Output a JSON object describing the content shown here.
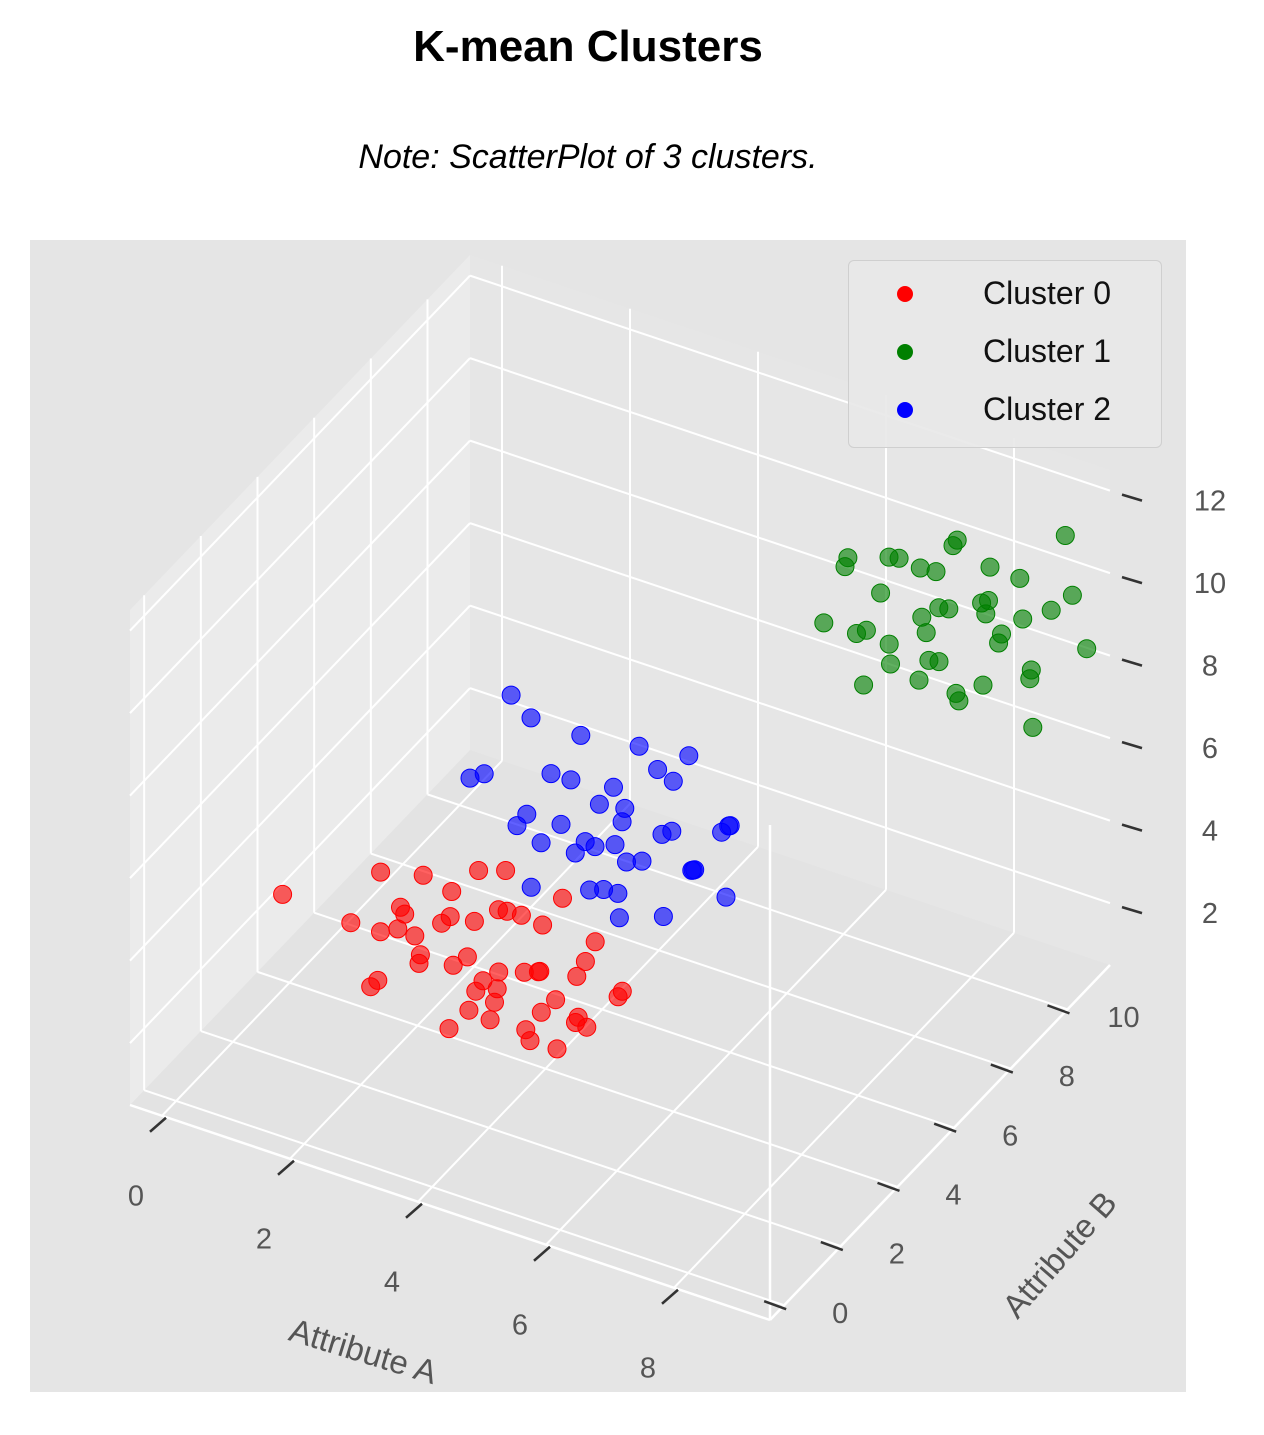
{
  "title": "K-mean Clusters",
  "subtitle": "Note: ScatterPlot of 3 clusters.",
  "chart_data": {
    "type": "scatter",
    "projection": "3d",
    "xlabel": "Attribute A",
    "ylabel": "Attribute B",
    "zlabel": "",
    "xlim": [
      -0.5,
      9.5
    ],
    "ylim": [
      -0.5,
      11.5
    ],
    "zlim": [
      0.5,
      12.5
    ],
    "xticks": [
      "0",
      "2",
      "4",
      "6",
      "8"
    ],
    "yticks": [
      "0",
      "2",
      "4",
      "6",
      "8",
      "10"
    ],
    "zticks": [
      "2",
      "4",
      "6",
      "8",
      "10",
      "12"
    ],
    "grid": true,
    "legend_position": "top-right",
    "series": [
      {
        "name": "Cluster 0",
        "color": "#ff0000",
        "points": [
          [
            1.2,
            4.5,
            2.0
          ],
          [
            0.6,
            2.4,
            4.1
          ],
          [
            1.4,
            3.0,
            3.4
          ],
          [
            2.0,
            3.4,
            3.8
          ],
          [
            1.8,
            4.0,
            3.1
          ],
          [
            2.4,
            3.2,
            3.0
          ],
          [
            2.6,
            3.8,
            3.6
          ],
          [
            2.2,
            4.4,
            2.8
          ],
          [
            1.6,
            3.6,
            4.3
          ],
          [
            3.0,
            3.0,
            3.2
          ],
          [
            3.2,
            3.6,
            2.5
          ],
          [
            2.8,
            4.2,
            3.3
          ],
          [
            3.4,
            2.6,
            3.9
          ],
          [
            2.0,
            2.6,
            2.6
          ],
          [
            3.6,
            3.2,
            2.8
          ],
          [
            3.0,
            4.6,
            3.4
          ],
          [
            4.0,
            3.8,
            3.0
          ],
          [
            3.8,
            2.8,
            3.6
          ],
          [
            4.2,
            3.4,
            2.4
          ],
          [
            3.4,
            4.0,
            4.0
          ],
          [
            2.4,
            2.4,
            4.2
          ],
          [
            4.6,
            3.0,
            3.2
          ],
          [
            4.4,
            4.2,
            2.8
          ],
          [
            4.8,
            3.6,
            3.8
          ],
          [
            4.0,
            2.2,
            3.4
          ],
          [
            3.2,
            2.4,
            2.2
          ],
          [
            5.0,
            3.2,
            2.6
          ],
          [
            4.6,
            4.4,
            3.6
          ],
          [
            2.8,
            3.4,
            4.6
          ],
          [
            1.8,
            2.8,
            2.2
          ],
          [
            3.6,
            4.8,
            3.2
          ],
          [
            5.2,
            4.0,
            3.0
          ],
          [
            4.2,
            3.0,
            2.0
          ],
          [
            3.8,
            3.6,
            4.4
          ],
          [
            2.6,
            4.8,
            4.0
          ],
          [
            4.8,
            2.6,
            2.4
          ],
          [
            5.4,
            3.4,
            3.4
          ],
          [
            4.4,
            2.4,
            2.8
          ],
          [
            3.0,
            3.8,
            2.0
          ],
          [
            2.2,
            3.6,
            2.4
          ],
          [
            3.6,
            2.2,
            3.0
          ],
          [
            4.0,
            4.6,
            4.2
          ],
          [
            3.4,
            3.4,
            1.8
          ],
          [
            4.6,
            3.8,
            2.2
          ],
          [
            5.0,
            2.8,
            3.0
          ],
          [
            2.0,
            4.2,
            4.0
          ],
          [
            3.2,
            4.4,
            4.6
          ],
          [
            4.2,
            2.8,
            3.8
          ],
          [
            3.8,
            4.2,
            2.6
          ],
          [
            2.4,
            3.0,
            3.6
          ]
        ]
      },
      {
        "name": "Cluster 1",
        "color": "#008000",
        "points": [
          [
            7.2,
            8.6,
            10.4
          ],
          [
            7.6,
            8.0,
            9.8
          ],
          [
            8.0,
            9.2,
            10.0
          ],
          [
            7.4,
            9.6,
            9.2
          ],
          [
            8.2,
            8.4,
            9.4
          ],
          [
            8.6,
            9.0,
            10.6
          ],
          [
            6.8,
            9.0,
            9.0
          ],
          [
            7.8,
            9.8,
            11.0
          ],
          [
            8.4,
            9.6,
            9.8
          ],
          [
            9.0,
            8.8,
            10.2
          ],
          [
            7.0,
            8.2,
            9.6
          ],
          [
            8.8,
            10.0,
            9.6
          ],
          [
            7.6,
            9.4,
            8.4
          ],
          [
            8.2,
            10.2,
            10.4
          ],
          [
            9.2,
            9.4,
            9.0
          ],
          [
            6.6,
            8.8,
            10.8
          ],
          [
            7.2,
            10.0,
            10.0
          ],
          [
            8.6,
            8.2,
            8.8
          ],
          [
            9.4,
            10.4,
            10.2
          ],
          [
            7.8,
            8.6,
            8.6
          ],
          [
            8.0,
            10.6,
            9.2
          ],
          [
            6.4,
            8.4,
            9.4
          ],
          [
            9.0,
            9.8,
            8.4
          ],
          [
            7.4,
            8.8,
            11.2
          ],
          [
            8.8,
            8.6,
            9.0
          ],
          [
            9.6,
            9.2,
            10.8
          ],
          [
            7.0,
            9.4,
            8.0
          ],
          [
            8.4,
            10.8,
            9.8
          ],
          [
            9.8,
            10.0,
            9.4
          ],
          [
            7.6,
            10.4,
            10.6
          ],
          [
            6.2,
            9.6,
            9.8
          ],
          [
            8.2,
            9.0,
            8.2
          ],
          [
            9.2,
            10.6,
            11.4
          ],
          [
            7.8,
            9.2,
            10.8
          ],
          [
            8.6,
            9.6,
            9.2
          ],
          [
            7.2,
            8.0,
            8.6
          ],
          [
            6.8,
            9.8,
            10.2
          ],
          [
            9.4,
            9.0,
            8.0
          ],
          [
            8.0,
            8.4,
            10.0
          ],
          [
            7.4,
            10.2,
            9.0
          ]
        ]
      },
      {
        "name": "Cluster 2",
        "color": "#0000ff",
        "points": [
          [
            4.0,
            5.4,
            5.0
          ],
          [
            4.4,
            5.8,
            5.4
          ],
          [
            4.2,
            6.0,
            4.6
          ],
          [
            4.8,
            5.6,
            4.8
          ],
          [
            3.8,
            5.0,
            5.6
          ],
          [
            5.0,
            6.2,
            5.2
          ],
          [
            4.6,
            5.2,
            4.2
          ],
          [
            3.6,
            5.8,
            6.0
          ],
          [
            5.2,
            5.4,
            5.8
          ],
          [
            4.0,
            6.4,
            5.6
          ],
          [
            5.4,
            6.0,
            4.6
          ],
          [
            3.4,
            5.2,
            4.8
          ],
          [
            4.6,
            6.6,
            6.2
          ],
          [
            5.6,
            5.6,
            5.0
          ],
          [
            4.2,
            4.6,
            5.4
          ],
          [
            3.2,
            6.0,
            5.8
          ],
          [
            5.8,
            6.4,
            5.6
          ],
          [
            4.8,
            4.8,
            4.0
          ],
          [
            3.6,
            4.4,
            4.4
          ],
          [
            5.0,
            6.8,
            6.6
          ],
          [
            2.6,
            5.0,
            6.2
          ],
          [
            4.4,
            5.0,
            6.4
          ],
          [
            5.4,
            5.0,
            4.2
          ],
          [
            3.0,
            5.6,
            5.0
          ],
          [
            6.0,
            6.0,
            6.0
          ],
          [
            4.0,
            6.8,
            4.8
          ],
          [
            2.8,
            6.2,
            6.8
          ],
          [
            5.6,
            6.6,
            5.2
          ],
          [
            3.4,
            6.6,
            6.4
          ],
          [
            4.6,
            4.2,
            5.0
          ],
          [
            2.4,
            6.4,
            7.0
          ],
          [
            5.2,
            5.8,
            6.8
          ],
          [
            3.8,
            6.2,
            4.2
          ],
          [
            6.2,
            5.4,
            4.8
          ],
          [
            4.2,
            5.6,
            3.8
          ],
          [
            2.2,
            5.4,
            5.6
          ],
          [
            5.0,
            4.6,
            5.6
          ],
          [
            4.4,
            6.4,
            6.8
          ],
          [
            3.2,
            4.8,
            5.4
          ],
          [
            5.8,
            5.2,
            5.4
          ]
        ]
      }
    ]
  }
}
